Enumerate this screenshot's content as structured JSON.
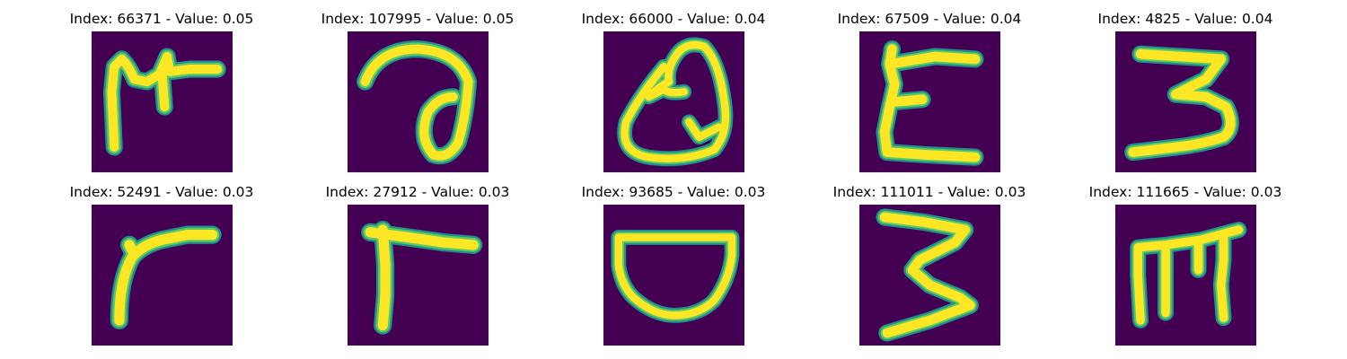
{
  "colors": {
    "background": "#440154",
    "stroke_core": "#fde725",
    "stroke_edge": "#5ec962",
    "stroke_halo": "#21918c",
    "text": "#000000"
  },
  "images": [
    {
      "title": "Index: 66371 - Value: 0.05",
      "glyph": "glyph-m-star"
    },
    {
      "title": "Index: 107995 - Value: 0.05",
      "glyph": "glyph-a-loop"
    },
    {
      "title": "Index: 66000 - Value: 0.04",
      "glyph": "glyph-q-loop"
    },
    {
      "title": "Index: 67509 - Value: 0.04",
      "glyph": "glyph-e"
    },
    {
      "title": "Index: 4825 - Value: 0.04",
      "glyph": "glyph-3-flat"
    },
    {
      "title": "Index: 52491 - Value: 0.03",
      "glyph": "glyph-r-curve"
    },
    {
      "title": "Index: 27912 - Value: 0.03",
      "glyph": "glyph-r-angle"
    },
    {
      "title": "Index: 93685 - Value: 0.03",
      "glyph": "glyph-d-bowl"
    },
    {
      "title": "Index: 111011 - Value: 0.03",
      "glyph": "glyph-3-wide"
    },
    {
      "title": "Index: 111665 - Value: 0.03",
      "glyph": "glyph-m-bars"
    }
  ]
}
